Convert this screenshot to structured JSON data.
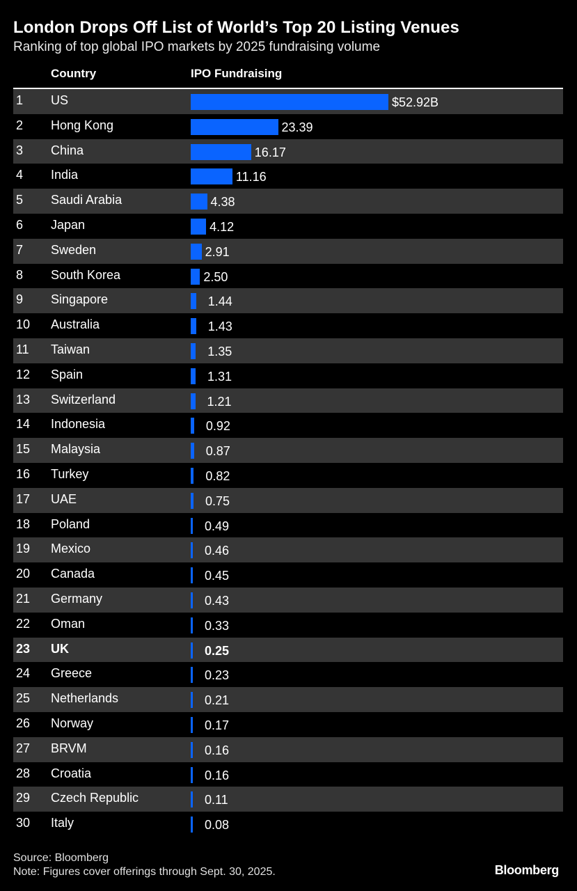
{
  "chart_data": {
    "type": "bar",
    "orientation": "horizontal",
    "title": "London Drops Off List of World’s Top 20 Listing Venues",
    "subtitle": "Ranking of top global IPO markets by 2025 fundraising volume",
    "column_headers": {
      "country": "Country",
      "value": "IPO Fundraising"
    },
    "value_unit_label": "$52.92B",
    "xlim": [
      0,
      52.92
    ],
    "bar_color": "#0a64ff",
    "highlight": "UK",
    "rows": [
      {
        "rank": "1",
        "country": "US",
        "value": 52.92,
        "label": "$52.92B"
      },
      {
        "rank": "2",
        "country": "Hong Kong",
        "value": 23.39,
        "label": "23.39"
      },
      {
        "rank": "3",
        "country": "China",
        "value": 16.17,
        "label": "16.17"
      },
      {
        "rank": "4",
        "country": "India",
        "value": 11.16,
        "label": "11.16"
      },
      {
        "rank": "5",
        "country": "Saudi Arabia",
        "value": 4.38,
        "label": "4.38"
      },
      {
        "rank": "6",
        "country": "Japan",
        "value": 4.12,
        "label": "4.12"
      },
      {
        "rank": "7",
        "country": "Sweden",
        "value": 2.91,
        "label": "2.91"
      },
      {
        "rank": "8",
        "country": "South Korea",
        "value": 2.5,
        "label": "2.50"
      },
      {
        "rank": "9",
        "country": "Singapore",
        "value": 1.44,
        "label": "1.44"
      },
      {
        "rank": "10",
        "country": "Australia",
        "value": 1.43,
        "label": "1.43"
      },
      {
        "rank": "11",
        "country": "Taiwan",
        "value": 1.35,
        "label": "1.35"
      },
      {
        "rank": "12",
        "country": "Spain",
        "value": 1.31,
        "label": "1.31"
      },
      {
        "rank": "13",
        "country": "Switzerland",
        "value": 1.21,
        "label": "1.21"
      },
      {
        "rank": "14",
        "country": "Indonesia",
        "value": 0.92,
        "label": "0.92"
      },
      {
        "rank": "15",
        "country": "Malaysia",
        "value": 0.87,
        "label": "0.87"
      },
      {
        "rank": "16",
        "country": "Turkey",
        "value": 0.82,
        "label": "0.82"
      },
      {
        "rank": "17",
        "country": "UAE",
        "value": 0.75,
        "label": "0.75"
      },
      {
        "rank": "18",
        "country": "Poland",
        "value": 0.49,
        "label": "0.49"
      },
      {
        "rank": "19",
        "country": "Mexico",
        "value": 0.46,
        "label": "0.46"
      },
      {
        "rank": "20",
        "country": "Canada",
        "value": 0.45,
        "label": "0.45"
      },
      {
        "rank": "21",
        "country": "Germany",
        "value": 0.43,
        "label": "0.43"
      },
      {
        "rank": "22",
        "country": "Oman",
        "value": 0.33,
        "label": "0.33"
      },
      {
        "rank": "23",
        "country": "UK",
        "value": 0.25,
        "label": "0.25"
      },
      {
        "rank": "24",
        "country": "Greece",
        "value": 0.23,
        "label": "0.23"
      },
      {
        "rank": "25",
        "country": "Netherlands",
        "value": 0.21,
        "label": "0.21"
      },
      {
        "rank": "26",
        "country": "Norway",
        "value": 0.17,
        "label": "0.17"
      },
      {
        "rank": "27",
        "country": "BRVM",
        "value": 0.16,
        "label": "0.16"
      },
      {
        "rank": "28",
        "country": "Croatia",
        "value": 0.16,
        "label": "0.16"
      },
      {
        "rank": "29",
        "country": "Czech Republic",
        "value": 0.11,
        "label": "0.11"
      },
      {
        "rank": "30",
        "country": "Italy",
        "value": 0.08,
        "label": "0.08"
      }
    ]
  },
  "footer": {
    "source": "Source: Bloomberg",
    "note": "Note: Figures cover offerings through Sept. 30, 2025.",
    "logo": "Bloomberg"
  }
}
